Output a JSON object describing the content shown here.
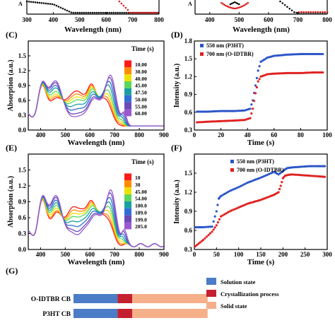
{
  "top_partial": {
    "left": {
      "ylabel_fragment": "A",
      "xlabel": "Wavelength (nm)",
      "xticks": [
        "300",
        "400",
        "500",
        "600",
        "700",
        "800"
      ],
      "series_colors": [
        "#111111",
        "#e02020"
      ]
    },
    "right": {
      "ylabel_fragment": "A",
      "xlabel": "Wavelength (nm)",
      "xticks": [
        "400",
        "500",
        "600",
        "700",
        "800"
      ],
      "series_colors": [
        "#111111",
        "#e02020"
      ]
    }
  },
  "panels": {
    "C": {
      "label": "(C)"
    },
    "D": {
      "label": "(D)"
    },
    "E": {
      "label": "(E)"
    },
    "F": {
      "label": "(F)"
    },
    "G": {
      "label": "(G)"
    }
  },
  "chart_data": [
    {
      "id": "C",
      "type": "line",
      "xlabel": "Wavelength (nm)",
      "ylabel": "Absorption (a.u.)",
      "xlim": [
        350,
        900
      ],
      "ylim": [
        0,
        1.8
      ],
      "xticks": [
        400,
        500,
        600,
        700,
        800,
        900
      ],
      "yticks": [
        0.0,
        0.3,
        0.6,
        0.9,
        1.2,
        1.5
      ],
      "legend_title": "Time (s)",
      "legend_placement": "right",
      "series": [
        {
          "name": "10.00",
          "color": "#ff1a1a"
        },
        {
          "name": "30.00",
          "color": "#ff8c00"
        },
        {
          "name": "40.00",
          "color": "#f0e000"
        },
        {
          "name": "45.00",
          "color": "#5cd65c"
        },
        {
          "name": "47.50",
          "color": "#18a0a0"
        },
        {
          "name": "50.00",
          "color": "#2f6fd6"
        },
        {
          "name": "55.00",
          "color": "#6a4ab8"
        },
        {
          "name": "60.00",
          "color": "#9b59d0"
        }
      ],
      "curve_params": [
        {
          "p3ht": 1.15,
          "oid": 0.0,
          "shift": 0
        },
        {
          "p3ht": 1.05,
          "oid": 0.12,
          "shift": 3
        },
        {
          "p3ht": 0.95,
          "oid": 0.25,
          "shift": 6
        },
        {
          "p3ht": 0.85,
          "oid": 0.4,
          "shift": 9
        },
        {
          "p3ht": 0.7,
          "oid": 0.6,
          "shift": 12
        },
        {
          "p3ht": 0.55,
          "oid": 0.75,
          "shift": 16
        },
        {
          "p3ht": 0.4,
          "oid": 0.9,
          "shift": 20
        },
        {
          "p3ht": 0.3,
          "oid": 1.0,
          "shift": 24
        }
      ]
    },
    {
      "id": "D",
      "type": "scatter",
      "xlabel": "Time (s)",
      "ylabel": "Intensity (a.u.)",
      "xlim": [
        0,
        100
      ],
      "ylim": [
        0.3,
        1.8
      ],
      "xticks": [
        0,
        20,
        40,
        60,
        80,
        100
      ],
      "yticks": [
        0.3,
        0.6,
        0.9,
        1.2,
        1.5,
        1.8
      ],
      "legend_placement": "top-left",
      "series": [
        {
          "name": "550 nm (P3HT)",
          "color": "#2a55c8",
          "x": [
            2,
            10,
            20,
            30,
            38,
            42,
            44,
            46,
            48,
            50,
            55,
            60,
            70,
            80,
            90,
            98
          ],
          "y": [
            0.61,
            0.61,
            0.62,
            0.62,
            0.63,
            0.66,
            0.8,
            1.05,
            1.3,
            1.45,
            1.52,
            1.55,
            1.57,
            1.58,
            1.58,
            1.58
          ]
        },
        {
          "name": "700 nm (O-IDTBR)",
          "color": "#e02020",
          "x": [
            2,
            10,
            20,
            30,
            38,
            42,
            44,
            46,
            48,
            50,
            55,
            60,
            70,
            80,
            90,
            98
          ],
          "y": [
            0.43,
            0.44,
            0.45,
            0.46,
            0.47,
            0.5,
            0.66,
            0.92,
            1.12,
            1.2,
            1.24,
            1.25,
            1.26,
            1.26,
            1.27,
            1.27
          ]
        }
      ]
    },
    {
      "id": "E",
      "type": "line",
      "xlabel": "Wavelength (nm)",
      "ylabel": "Absorption (a.u.)",
      "xlim": [
        350,
        900
      ],
      "ylim": [
        0,
        1.8
      ],
      "xticks": [
        400,
        500,
        600,
        700,
        800,
        900
      ],
      "yticks": [
        0.0,
        0.3,
        0.6,
        0.9,
        1.2,
        1.5
      ],
      "legend_title": "Time (s)",
      "legend_placement": "right",
      "series": [
        {
          "name": "10",
          "color": "#ff1a1a"
        },
        {
          "name": "30",
          "color": "#ff8c00"
        },
        {
          "name": "45.00",
          "color": "#f0e000"
        },
        {
          "name": "54.00",
          "color": "#5cd65c"
        },
        {
          "name": "180.0",
          "color": "#18a0a0"
        },
        {
          "name": "189.0",
          "color": "#2f6fd6"
        },
        {
          "name": "199.0",
          "color": "#6a4ab8"
        },
        {
          "name": "205.0",
          "color": "#9b59d0"
        }
      ],
      "curve_params": [
        {
          "p3ht": 1.2,
          "oid": 0.05,
          "shift": 0
        },
        {
          "p3ht": 1.1,
          "oid": 0.15,
          "shift": 3
        },
        {
          "p3ht": 1.0,
          "oid": 0.3,
          "shift": 6
        },
        {
          "p3ht": 0.9,
          "oid": 0.45,
          "shift": 9
        },
        {
          "p3ht": 0.75,
          "oid": 0.6,
          "shift": 12
        },
        {
          "p3ht": 0.6,
          "oid": 0.75,
          "shift": 16
        },
        {
          "p3ht": 0.45,
          "oid": 0.9,
          "shift": 20
        },
        {
          "p3ht": 0.35,
          "oid": 1.0,
          "shift": 24
        }
      ]
    },
    {
      "id": "F",
      "type": "scatter",
      "xlabel": "Time (s)",
      "ylabel": "Intensity (a.u.)",
      "xlim": [
        0,
        300
      ],
      "ylim": [
        0.3,
        1.8
      ],
      "xticks": [
        0,
        50,
        100,
        150,
        200,
        250,
        300
      ],
      "yticks": [
        0.3,
        0.6,
        0.9,
        1.2,
        1.5
      ],
      "legend_placement": "top-center",
      "series": [
        {
          "name": "550 nm (P3HT)",
          "color": "#2a55c8",
          "x": [
            2,
            20,
            40,
            50,
            55,
            60,
            80,
            100,
            120,
            150,
            180,
            190,
            200,
            205,
            210,
            220,
            240,
            260,
            280,
            298
          ],
          "y": [
            0.65,
            0.65,
            0.66,
            0.9,
            1.1,
            1.14,
            1.22,
            1.28,
            1.35,
            1.43,
            1.52,
            1.48,
            1.53,
            1.56,
            1.58,
            1.59,
            1.6,
            1.61,
            1.61,
            1.61
          ]
        },
        {
          "name": "700 nm (O-IDTBR)",
          "color": "#e02020",
          "x": [
            2,
            20,
            40,
            50,
            60,
            80,
            100,
            120,
            150,
            180,
            190,
            195,
            200,
            205,
            210,
            220,
            240,
            260,
            280,
            298
          ],
          "y": [
            0.35,
            0.45,
            0.58,
            0.68,
            0.82,
            0.9,
            0.96,
            1.02,
            1.08,
            1.16,
            1.2,
            1.3,
            1.42,
            1.46,
            1.47,
            1.48,
            1.47,
            1.46,
            1.45,
            1.44
          ]
        }
      ]
    },
    {
      "id": "G",
      "type": "bar",
      "categories": [
        "O-IDTBR CB",
        "P3HT CB"
      ],
      "stacked": true,
      "legend_placement": "right",
      "series": [
        {
          "name": "Solution state",
          "color": "#4a7cc7",
          "values": [
            0.24,
            0.24
          ]
        },
        {
          "name": "Crystallization process",
          "color": "#c42030",
          "values": [
            0.08,
            0.08
          ]
        },
        {
          "name": "Solid state",
          "color": "#f5b08a",
          "values": [
            0.41,
            0.41
          ]
        }
      ]
    }
  ]
}
